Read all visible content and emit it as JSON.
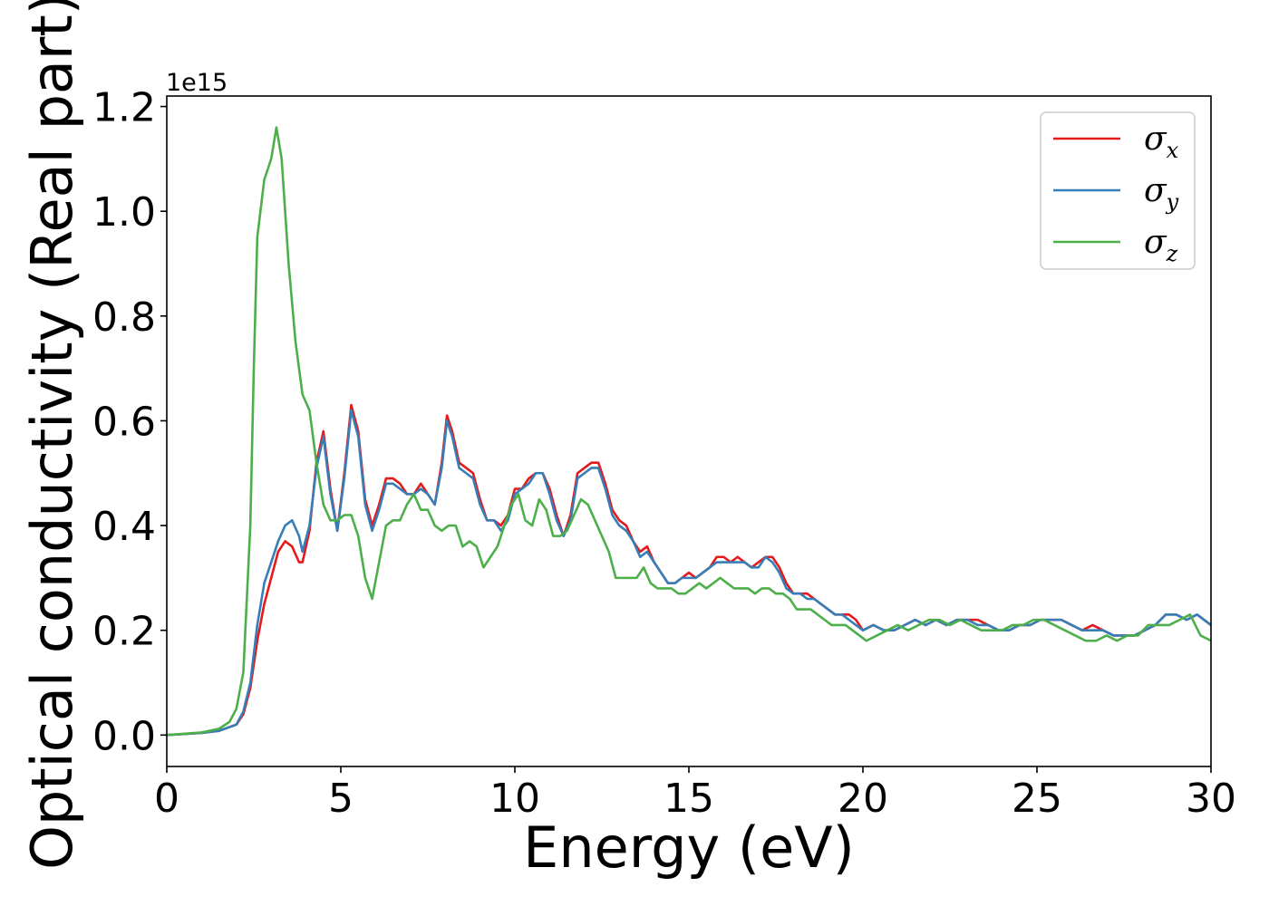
{
  "chart_data": {
    "type": "line",
    "xlabel": "Energy (eV)",
    "ylabel": "Optical conductivity (Real part)",
    "y_multiplier_label": "1e15",
    "xlim": [
      0,
      30
    ],
    "ylim": [
      -0.06,
      1.22
    ],
    "x_ticks": [
      0,
      5,
      10,
      15,
      20,
      25,
      30
    ],
    "y_ticks": [
      0.0,
      0.2,
      0.4,
      0.6,
      0.8,
      1.0,
      1.2
    ],
    "x_tick_labels": [
      "0",
      "5",
      "10",
      "15",
      "20",
      "25",
      "30"
    ],
    "y_tick_labels": [
      "0.0",
      "0.2",
      "0.4",
      "0.6",
      "0.8",
      "1.0",
      "1.2"
    ],
    "grid": false,
    "legend_position": "top-right",
    "series": [
      {
        "name": "σ",
        "subscript": "x",
        "color": "#e41a1c",
        "x": [
          0,
          1.0,
          1.5,
          2.0,
          2.2,
          2.4,
          2.6,
          2.8,
          3.0,
          3.2,
          3.4,
          3.6,
          3.8,
          3.9,
          4.1,
          4.3,
          4.5,
          4.7,
          4.9,
          5.1,
          5.3,
          5.5,
          5.7,
          5.9,
          6.1,
          6.3,
          6.5,
          6.7,
          6.9,
          7.1,
          7.3,
          7.5,
          7.7,
          7.9,
          8.05,
          8.2,
          8.4,
          8.6,
          8.8,
          9.0,
          9.2,
          9.4,
          9.6,
          9.8,
          10.0,
          10.2,
          10.4,
          10.6,
          10.8,
          11.0,
          11.2,
          11.4,
          11.6,
          11.8,
          12.0,
          12.2,
          12.4,
          12.6,
          12.8,
          13.0,
          13.2,
          13.4,
          13.6,
          13.8,
          14.0,
          14.2,
          14.4,
          14.6,
          14.8,
          15.0,
          15.2,
          15.4,
          15.6,
          15.8,
          16.0,
          16.2,
          16.4,
          16.6,
          16.8,
          17.0,
          17.2,
          17.4,
          17.6,
          17.8,
          18.0,
          18.2,
          18.4,
          18.6,
          18.8,
          19.0,
          19.2,
          19.4,
          19.6,
          19.8,
          20.0,
          20.3,
          20.6,
          20.9,
          21.2,
          21.5,
          21.8,
          22.1,
          22.4,
          22.7,
          23.0,
          23.3,
          23.6,
          23.9,
          24.2,
          24.5,
          24.8,
          25.1,
          25.4,
          25.7,
          26.0,
          26.3,
          26.6,
          26.9,
          27.2,
          27.5,
          27.8,
          28.1,
          28.4,
          28.7,
          29.0,
          29.3,
          29.6,
          30.0
        ],
        "y": [
          0.0,
          0.004,
          0.008,
          0.02,
          0.04,
          0.09,
          0.18,
          0.25,
          0.3,
          0.35,
          0.37,
          0.36,
          0.33,
          0.33,
          0.39,
          0.52,
          0.58,
          0.47,
          0.39,
          0.5,
          0.63,
          0.58,
          0.45,
          0.4,
          0.44,
          0.49,
          0.49,
          0.48,
          0.46,
          0.46,
          0.48,
          0.46,
          0.44,
          0.52,
          0.61,
          0.58,
          0.52,
          0.51,
          0.5,
          0.45,
          0.41,
          0.41,
          0.4,
          0.42,
          0.47,
          0.47,
          0.49,
          0.5,
          0.5,
          0.47,
          0.42,
          0.38,
          0.42,
          0.5,
          0.51,
          0.52,
          0.52,
          0.48,
          0.43,
          0.41,
          0.4,
          0.37,
          0.35,
          0.36,
          0.33,
          0.31,
          0.29,
          0.29,
          0.3,
          0.31,
          0.3,
          0.31,
          0.32,
          0.34,
          0.34,
          0.33,
          0.34,
          0.33,
          0.32,
          0.33,
          0.34,
          0.34,
          0.32,
          0.29,
          0.27,
          0.27,
          0.27,
          0.26,
          0.25,
          0.24,
          0.23,
          0.23,
          0.23,
          0.22,
          0.2,
          0.21,
          0.2,
          0.2,
          0.21,
          0.22,
          0.21,
          0.22,
          0.21,
          0.22,
          0.22,
          0.22,
          0.21,
          0.2,
          0.2,
          0.21,
          0.21,
          0.22,
          0.22,
          0.22,
          0.21,
          0.2,
          0.21,
          0.2,
          0.19,
          0.19,
          0.19,
          0.2,
          0.21,
          0.23,
          0.23,
          0.22,
          0.23,
          0.21
        ]
      },
      {
        "name": "σ",
        "subscript": "y",
        "color": "#377eb8",
        "x": [
          0,
          1.0,
          1.5,
          2.0,
          2.2,
          2.4,
          2.6,
          2.8,
          3.0,
          3.2,
          3.4,
          3.6,
          3.8,
          3.9,
          4.1,
          4.3,
          4.5,
          4.7,
          4.9,
          5.1,
          5.3,
          5.5,
          5.7,
          5.9,
          6.1,
          6.3,
          6.5,
          6.7,
          6.9,
          7.1,
          7.3,
          7.5,
          7.7,
          7.9,
          8.05,
          8.2,
          8.4,
          8.6,
          8.8,
          9.0,
          9.2,
          9.4,
          9.6,
          9.8,
          10.0,
          10.2,
          10.4,
          10.6,
          10.8,
          11.0,
          11.2,
          11.4,
          11.6,
          11.8,
          12.0,
          12.2,
          12.4,
          12.6,
          12.8,
          13.0,
          13.2,
          13.4,
          13.6,
          13.8,
          14.0,
          14.2,
          14.4,
          14.6,
          14.8,
          15.0,
          15.2,
          15.4,
          15.6,
          15.8,
          16.0,
          16.2,
          16.4,
          16.6,
          16.8,
          17.0,
          17.2,
          17.4,
          17.6,
          17.8,
          18.0,
          18.2,
          18.4,
          18.6,
          18.8,
          19.0,
          19.2,
          19.4,
          19.6,
          19.8,
          20.0,
          20.3,
          20.6,
          20.9,
          21.2,
          21.5,
          21.8,
          22.1,
          22.4,
          22.7,
          23.0,
          23.3,
          23.6,
          23.9,
          24.2,
          24.5,
          24.8,
          25.1,
          25.4,
          25.7,
          26.0,
          26.3,
          26.6,
          26.9,
          27.2,
          27.5,
          27.8,
          28.1,
          28.4,
          28.7,
          29.0,
          29.3,
          29.6,
          30.0
        ],
        "y": [
          0.0,
          0.004,
          0.008,
          0.02,
          0.045,
          0.1,
          0.21,
          0.29,
          0.33,
          0.37,
          0.4,
          0.41,
          0.38,
          0.35,
          0.4,
          0.51,
          0.57,
          0.46,
          0.39,
          0.49,
          0.62,
          0.57,
          0.44,
          0.39,
          0.43,
          0.48,
          0.48,
          0.47,
          0.46,
          0.46,
          0.47,
          0.46,
          0.44,
          0.51,
          0.6,
          0.57,
          0.51,
          0.5,
          0.49,
          0.44,
          0.41,
          0.41,
          0.39,
          0.41,
          0.46,
          0.47,
          0.48,
          0.5,
          0.5,
          0.46,
          0.41,
          0.38,
          0.41,
          0.49,
          0.5,
          0.51,
          0.51,
          0.47,
          0.42,
          0.4,
          0.39,
          0.37,
          0.34,
          0.35,
          0.33,
          0.31,
          0.29,
          0.29,
          0.3,
          0.3,
          0.3,
          0.31,
          0.32,
          0.33,
          0.33,
          0.33,
          0.33,
          0.33,
          0.32,
          0.32,
          0.34,
          0.33,
          0.31,
          0.28,
          0.27,
          0.27,
          0.26,
          0.26,
          0.25,
          0.24,
          0.23,
          0.23,
          0.22,
          0.21,
          0.2,
          0.21,
          0.2,
          0.2,
          0.21,
          0.22,
          0.21,
          0.22,
          0.21,
          0.22,
          0.22,
          0.21,
          0.21,
          0.2,
          0.2,
          0.21,
          0.21,
          0.22,
          0.22,
          0.22,
          0.21,
          0.2,
          0.2,
          0.2,
          0.19,
          0.19,
          0.19,
          0.2,
          0.21,
          0.23,
          0.23,
          0.22,
          0.23,
          0.21
        ]
      },
      {
        "name": "σ",
        "subscript": "z",
        "color": "#4daf4a",
        "x": [
          0,
          1.0,
          1.5,
          1.8,
          2.0,
          2.2,
          2.4,
          2.5,
          2.6,
          2.8,
          3.0,
          3.15,
          3.3,
          3.5,
          3.7,
          3.9,
          4.1,
          4.3,
          4.5,
          4.7,
          4.9,
          5.1,
          5.3,
          5.5,
          5.7,
          5.9,
          6.1,
          6.3,
          6.5,
          6.7,
          6.9,
          7.1,
          7.3,
          7.5,
          7.7,
          7.9,
          8.1,
          8.3,
          8.5,
          8.7,
          8.9,
          9.1,
          9.3,
          9.5,
          9.7,
          9.9,
          10.1,
          10.3,
          10.5,
          10.7,
          10.9,
          11.1,
          11.3,
          11.5,
          11.7,
          11.9,
          12.1,
          12.3,
          12.5,
          12.7,
          12.9,
          13.1,
          13.3,
          13.5,
          13.7,
          13.9,
          14.1,
          14.3,
          14.5,
          14.7,
          14.9,
          15.1,
          15.3,
          15.5,
          15.7,
          15.9,
          16.1,
          16.3,
          16.5,
          16.7,
          16.9,
          17.1,
          17.3,
          17.5,
          17.7,
          17.9,
          18.1,
          18.3,
          18.5,
          18.7,
          18.9,
          19.1,
          19.3,
          19.5,
          19.7,
          19.9,
          20.1,
          20.4,
          20.7,
          21.0,
          21.3,
          21.6,
          21.9,
          22.2,
          22.5,
          22.8,
          23.1,
          23.4,
          23.7,
          24.0,
          24.3,
          24.6,
          24.9,
          25.2,
          25.5,
          25.8,
          26.1,
          26.4,
          26.7,
          27.0,
          27.3,
          27.6,
          27.9,
          28.2,
          28.5,
          28.8,
          29.1,
          29.4,
          29.7,
          30.0
        ],
        "y": [
          0.0,
          0.005,
          0.012,
          0.025,
          0.05,
          0.12,
          0.4,
          0.7,
          0.95,
          1.06,
          1.1,
          1.16,
          1.1,
          0.9,
          0.75,
          0.65,
          0.62,
          0.52,
          0.44,
          0.41,
          0.41,
          0.42,
          0.42,
          0.38,
          0.3,
          0.26,
          0.33,
          0.4,
          0.41,
          0.41,
          0.44,
          0.46,
          0.43,
          0.43,
          0.4,
          0.39,
          0.4,
          0.4,
          0.36,
          0.37,
          0.36,
          0.32,
          0.34,
          0.36,
          0.4,
          0.44,
          0.46,
          0.41,
          0.4,
          0.45,
          0.43,
          0.38,
          0.38,
          0.39,
          0.42,
          0.45,
          0.44,
          0.41,
          0.38,
          0.35,
          0.3,
          0.3,
          0.3,
          0.3,
          0.32,
          0.29,
          0.28,
          0.28,
          0.28,
          0.27,
          0.27,
          0.28,
          0.29,
          0.28,
          0.29,
          0.3,
          0.29,
          0.28,
          0.28,
          0.28,
          0.27,
          0.28,
          0.28,
          0.27,
          0.27,
          0.26,
          0.24,
          0.24,
          0.24,
          0.23,
          0.22,
          0.21,
          0.21,
          0.21,
          0.2,
          0.19,
          0.18,
          0.19,
          0.2,
          0.21,
          0.2,
          0.21,
          0.22,
          0.22,
          0.21,
          0.22,
          0.21,
          0.2,
          0.2,
          0.2,
          0.21,
          0.21,
          0.22,
          0.22,
          0.21,
          0.2,
          0.19,
          0.18,
          0.18,
          0.19,
          0.18,
          0.19,
          0.19,
          0.21,
          0.21,
          0.21,
          0.22,
          0.23,
          0.19,
          0.18
        ]
      }
    ]
  }
}
